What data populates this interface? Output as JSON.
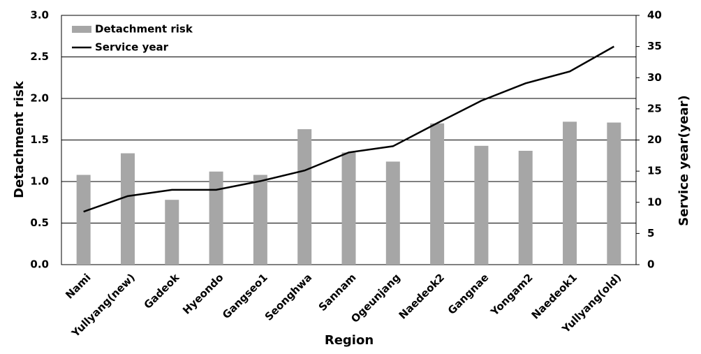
{
  "chart_data": {
    "type": "bar+line",
    "x_label": "Region",
    "y_label": "Detachment risk",
    "y2_label": "Service year(year)",
    "categories": [
      "Nami",
      "Yullyang(new)",
      "Gadeok",
      "Hyeondo",
      "Gangseo1",
      "Seonghwa",
      "Sannam",
      "Ogeunjang",
      "Naedeok2",
      "Gangnae",
      "Yongam2",
      "Naedeok1",
      "Yullyang(old)"
    ],
    "series": [
      {
        "name": "Detachment risk",
        "type": "bar",
        "color": "#a6a6a6",
        "values": [
          1.08,
          1.34,
          0.78,
          1.12,
          1.08,
          1.63,
          1.35,
          1.24,
          1.7,
          1.43,
          1.37,
          1.72,
          1.71
        ]
      },
      {
        "name": "Service year",
        "type": "line",
        "color": "#000000",
        "axis": "y2",
        "values": [
          8.5,
          11,
          12,
          12,
          13.4,
          15.1,
          18,
          19,
          22.7,
          26.3,
          29.1,
          31,
          35
        ]
      }
    ],
    "ylim": [
      0,
      3
    ],
    "yticks": [
      {
        "value": 0,
        "label": "0.0"
      },
      {
        "value": 0.5,
        "label": "0.5"
      },
      {
        "value": 1,
        "label": "1.0"
      },
      {
        "value": 1.5,
        "label": "1.5"
      },
      {
        "value": 2,
        "label": "2.0"
      },
      {
        "value": 2.5,
        "label": "2.5"
      },
      {
        "value": 3,
        "label": "3.0"
      }
    ],
    "y2lim": [
      0,
      40
    ],
    "y2ticks": [
      0,
      5,
      10,
      15,
      20,
      25,
      30,
      35,
      40
    ],
    "grid": true,
    "legend": "top-left"
  }
}
